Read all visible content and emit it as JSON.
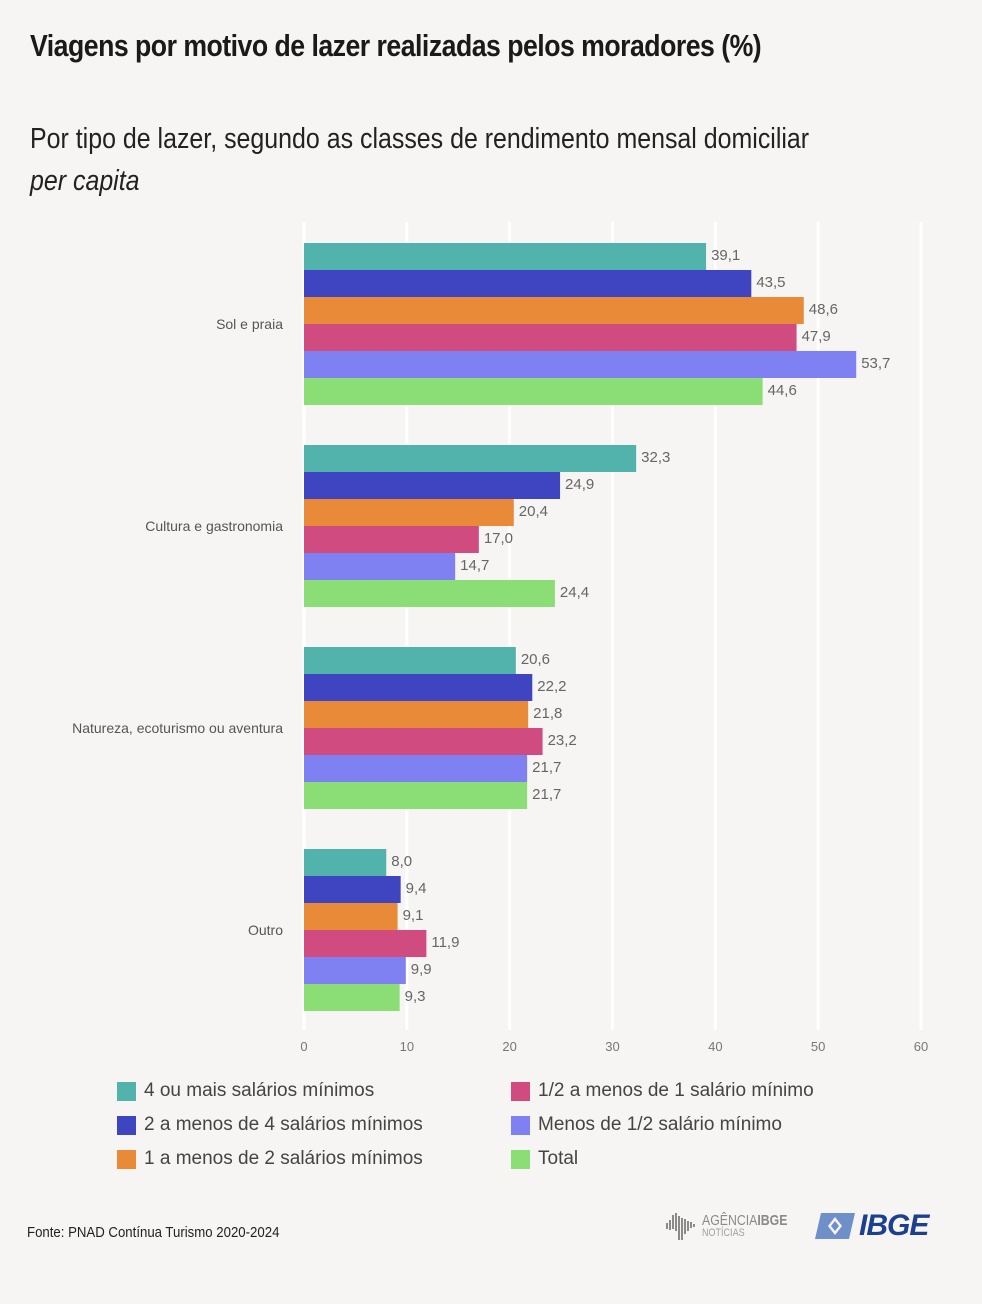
{
  "header": {
    "title": "Viagens por motivo de lazer realizadas pelos moradores (%)",
    "subtitle_main": "Por tipo de lazer, segundo as classes de rendimento mensal domiciliar ",
    "subtitle_italic": "per capita"
  },
  "footer": {
    "source": "Fonte: PNAD Contínua Turismo 2020-2024",
    "agencia_logo_main": "AGÊNCIA",
    "agencia_logo_bold": "IBGE",
    "agencia_logo_sub": "NOTÍCIAS",
    "ibge_logo": "IBGE",
    "ibge_logo_color": "#1c3f8f"
  },
  "chart_data": {
    "type": "bar",
    "orientation": "horizontal",
    "title": "Viagens por motivo de lazer realizadas pelos moradores (%)",
    "xlabel": "",
    "ylabel": "",
    "xlim": [
      0,
      60
    ],
    "x_ticks": [
      0,
      10,
      20,
      30,
      40,
      50,
      60
    ],
    "x_tick_labels": [
      "0",
      "10",
      "20",
      "30",
      "40",
      "50",
      "60"
    ],
    "grid": true,
    "legend_position": "bottom",
    "categories": [
      "Sol e praia",
      "Cultura e gastronomia",
      "Natureza, ecoturismo ou aventura",
      "Outro"
    ],
    "series": [
      {
        "name": "4 ou mais salários mínimos",
        "color": "#52b3ad",
        "values": [
          39.1,
          32.3,
          20.6,
          8.0
        ],
        "labels": [
          "39,1",
          "32,3",
          "20,6",
          "8,0"
        ]
      },
      {
        "name": "2 a menos de 4 salários mínimos",
        "color": "#3f44c0",
        "values": [
          43.5,
          24.9,
          22.2,
          9.4
        ],
        "labels": [
          "43,5",
          "24,9",
          "22,2",
          "9,4"
        ]
      },
      {
        "name": "1 a menos de 2 salários mínimos",
        "color": "#e88a37",
        "values": [
          48.6,
          20.4,
          21.8,
          9.1
        ],
        "labels": [
          "48,6",
          "20,4",
          "21,8",
          "9,1"
        ]
      },
      {
        "name": "1/2 a menos de 1 salário mínimo",
        "color": "#cf4b80",
        "values": [
          47.9,
          17.0,
          23.2,
          11.9
        ],
        "labels": [
          "47,9",
          "17,0",
          "23,2",
          "11,9"
        ]
      },
      {
        "name": "Menos de 1/2 salário mínimo",
        "color": "#7f80f2",
        "values": [
          53.7,
          14.7,
          21.7,
          9.9
        ],
        "labels": [
          "53,7",
          "14,7",
          "21,7",
          "9,9"
        ]
      },
      {
        "name": "Total",
        "color": "#8bdd76",
        "values": [
          44.6,
          24.4,
          21.7,
          9.3
        ],
        "labels": [
          "44,6",
          "24,4",
          "21,7",
          "9,3"
        ]
      }
    ]
  }
}
